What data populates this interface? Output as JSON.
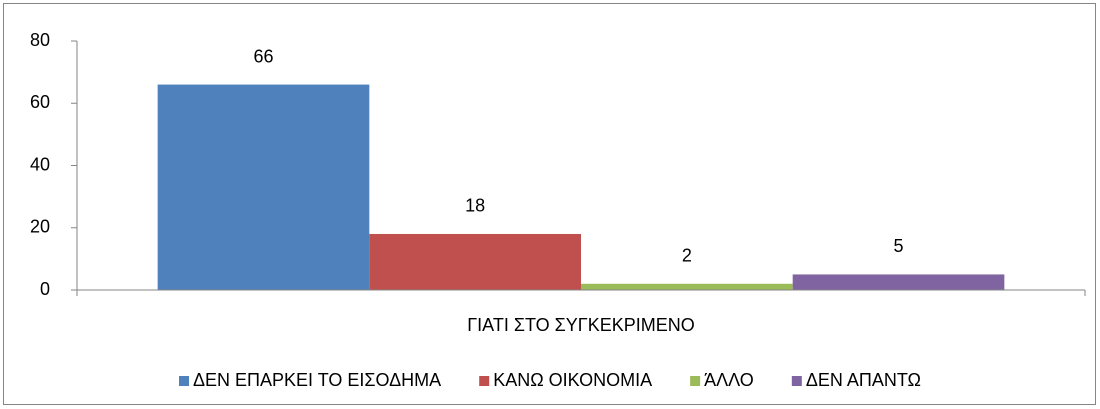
{
  "chart_data": {
    "type": "bar",
    "categories": [
      "ΓΙΑΤΙ ΣΤΟ ΣΥΓΚΕΚΡΙΜΕΝΟ"
    ],
    "series": [
      {
        "name": "ΔΕΝ ΕΠΑΡΚΕΙ ΤΟ ΕΙΣΟΔΗΜΑ",
        "color": "#4f81bd",
        "values": [
          66
        ]
      },
      {
        "name": "ΚΑΝΩ ΟΙΚΟΝΟΜΙΑ",
        "color": "#c0504d",
        "values": [
          18
        ]
      },
      {
        "name": "ΆΛΛΟ",
        "color": "#9bbb59",
        "values": [
          2
        ]
      },
      {
        "name": "ΔΕΝ ΑΠΑΝΤΩ",
        "color": "#8064a2",
        "values": [
          5
        ]
      }
    ],
    "ylim": [
      0,
      80
    ],
    "yticks": [
      0,
      20,
      40,
      60,
      80
    ],
    "grid": false,
    "legend": "bottom"
  }
}
